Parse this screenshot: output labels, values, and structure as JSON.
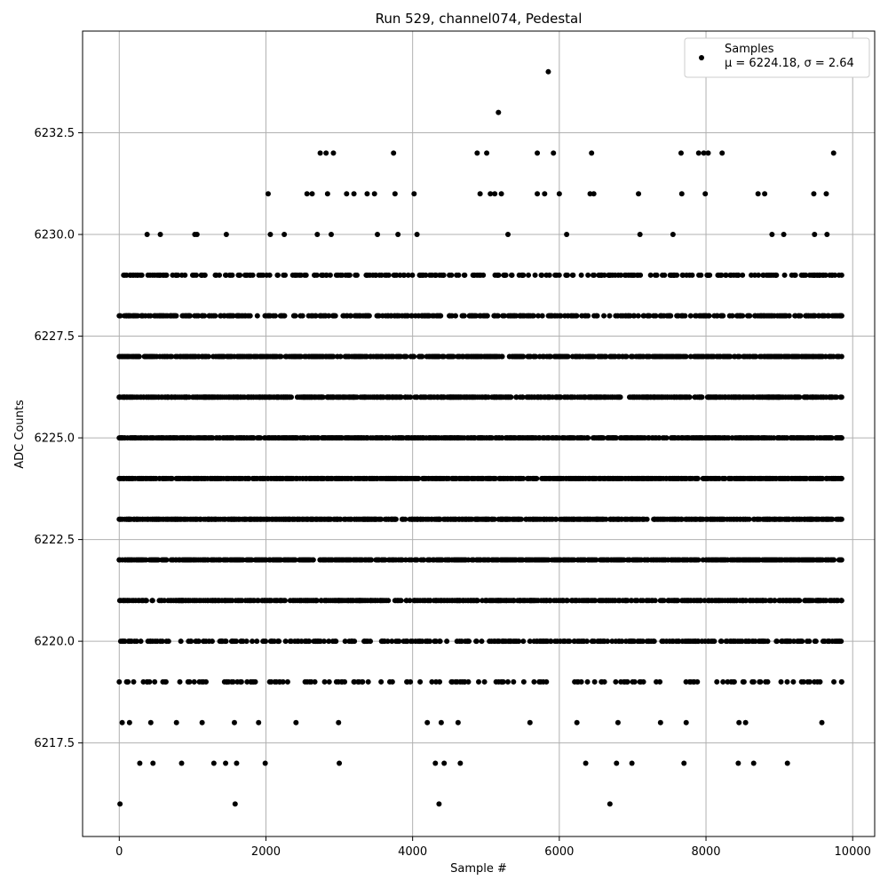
{
  "chart_data": {
    "type": "scatter",
    "title": "Run 529, channel074, Pedestal",
    "xlabel": "Sample #",
    "ylabel": "ADC Counts",
    "xlim": [
      -500,
      10300
    ],
    "ylim": [
      6215.2,
      6235.0
    ],
    "xticks": [
      0,
      2000,
      4000,
      6000,
      8000,
      10000
    ],
    "xtick_labels": [
      "0",
      "2000",
      "4000",
      "6000",
      "8000",
      "10000"
    ],
    "yticks": [
      6217.5,
      6220.0,
      6222.5,
      6225.0,
      6227.5,
      6230.0,
      6232.5
    ],
    "ytick_labels": [
      "6217.5",
      "6220.0",
      "6222.5",
      "6225.0",
      "6227.5",
      "6230.0",
      "6232.5"
    ],
    "grid": true,
    "legend_position": "top-right",
    "marker_color": "#000000",
    "grid_color": "#b0b0b0",
    "series": [
      {
        "name": "Samples",
        "stats_label": "μ = 6224.18, σ = 2.64",
        "points": [
          [
            0,
            6223
          ],
          [
            0,
            6222
          ],
          [
            0,
            6224
          ],
          [
            0,
            6225
          ],
          [
            0,
            6226
          ],
          [
            0,
            6227
          ],
          [
            10,
            6216
          ],
          [
            20,
            6220
          ],
          [
            20,
            6221
          ],
          [
            40,
            6218
          ],
          [
            60,
            6229
          ],
          [
            100,
            6229
          ],
          [
            100,
            6228
          ],
          [
            100,
            6219
          ],
          [
            140,
            6218
          ],
          [
            150,
            6220
          ],
          [
            250,
            6229
          ],
          [
            280,
            6217
          ],
          [
            380,
            6230
          ],
          [
            420,
            6220
          ],
          [
            430,
            6218
          ],
          [
            460,
            6217
          ],
          [
            480,
            6228
          ],
          [
            560,
            6230
          ],
          [
            560,
            6229
          ],
          [
            580,
            6228
          ],
          [
            780,
            6229
          ],
          [
            780,
            6218
          ],
          [
            850,
            6217
          ],
          [
            1030,
            6230
          ],
          [
            1060,
            6230
          ],
          [
            1120,
            6229
          ],
          [
            1130,
            6218
          ],
          [
            1230,
            6228
          ],
          [
            1290,
            6217
          ],
          [
            1310,
            6229
          ],
          [
            1450,
            6217
          ],
          [
            1460,
            6230
          ],
          [
            1570,
            6218
          ],
          [
            1580,
            6216
          ],
          [
            1600,
            6217
          ],
          [
            1900,
            6218
          ],
          [
            1990,
            6217
          ],
          [
            2030,
            6231
          ],
          [
            2060,
            6230
          ],
          [
            2250,
            6230
          ],
          [
            2410,
            6218
          ],
          [
            2560,
            6231
          ],
          [
            2630,
            6231
          ],
          [
            2700,
            6230
          ],
          [
            2740,
            6232
          ],
          [
            2820,
            6232
          ],
          [
            2840,
            6231
          ],
          [
            2890,
            6230
          ],
          [
            2920,
            6232
          ],
          [
            2990,
            6218
          ],
          [
            3000,
            6217
          ],
          [
            3040,
            6219
          ],
          [
            3100,
            6231
          ],
          [
            3200,
            6231
          ],
          [
            3380,
            6231
          ],
          [
            3480,
            6231
          ],
          [
            3520,
            6230
          ],
          [
            3740,
            6232
          ],
          [
            3760,
            6231
          ],
          [
            3800,
            6230
          ],
          [
            3920,
            6219
          ],
          [
            4020,
            6231
          ],
          [
            4060,
            6230
          ],
          [
            4200,
            6218
          ],
          [
            4310,
            6217
          ],
          [
            4360,
            6216
          ],
          [
            4390,
            6218
          ],
          [
            4430,
            6217
          ],
          [
            4620,
            6218
          ],
          [
            4650,
            6217
          ],
          [
            4980,
            6219
          ],
          [
            4880,
            6232
          ],
          [
            4920,
            6231
          ],
          [
            5010,
            6232
          ],
          [
            5060,
            6231
          ],
          [
            5120,
            6231
          ],
          [
            5170,
            6233
          ],
          [
            5210,
            6231
          ],
          [
            5300,
            6230
          ],
          [
            5600,
            6218
          ],
          [
            5700,
            6232
          ],
          [
            5700,
            6231
          ],
          [
            5800,
            6231
          ],
          [
            5850,
            6234
          ],
          [
            5920,
            6232
          ],
          [
            6000,
            6231
          ],
          [
            6100,
            6230
          ],
          [
            6240,
            6218
          ],
          [
            6360,
            6217
          ],
          [
            6420,
            6231
          ],
          [
            6440,
            6232
          ],
          [
            6470,
            6231
          ],
          [
            6690,
            6216
          ],
          [
            6780,
            6217
          ],
          [
            6800,
            6218
          ],
          [
            6990,
            6217
          ],
          [
            7080,
            6231
          ],
          [
            7100,
            6230
          ],
          [
            7380,
            6218
          ],
          [
            7550,
            6230
          ],
          [
            7660,
            6232
          ],
          [
            7670,
            6231
          ],
          [
            7700,
            6217
          ],
          [
            7730,
            6218
          ],
          [
            7900,
            6232
          ],
          [
            7970,
            6232
          ],
          [
            7990,
            6231
          ],
          [
            8030,
            6232
          ],
          [
            8220,
            6232
          ],
          [
            8440,
            6217
          ],
          [
            8450,
            6218
          ],
          [
            8540,
            6218
          ],
          [
            8650,
            6217
          ],
          [
            8710,
            6231
          ],
          [
            8800,
            6231
          ],
          [
            8900,
            6230
          ],
          [
            9060,
            6230
          ],
          [
            9110,
            6217
          ],
          [
            9470,
            6231
          ],
          [
            9480,
            6230
          ],
          [
            9580,
            6218
          ],
          [
            9640,
            6231
          ],
          [
            9650,
            6230
          ],
          [
            9740,
            6232
          ],
          [
            9850,
            6229
          ],
          [
            9850,
            6228
          ],
          [
            9850,
            6227
          ],
          [
            9850,
            6226
          ],
          [
            9850,
            6225
          ],
          [
            9850,
            6224
          ],
          [
            9850,
            6223
          ],
          [
            9850,
            6222
          ],
          [
            9850,
            6221
          ],
          [
            9850,
            6219
          ]
        ]
      }
    ]
  }
}
